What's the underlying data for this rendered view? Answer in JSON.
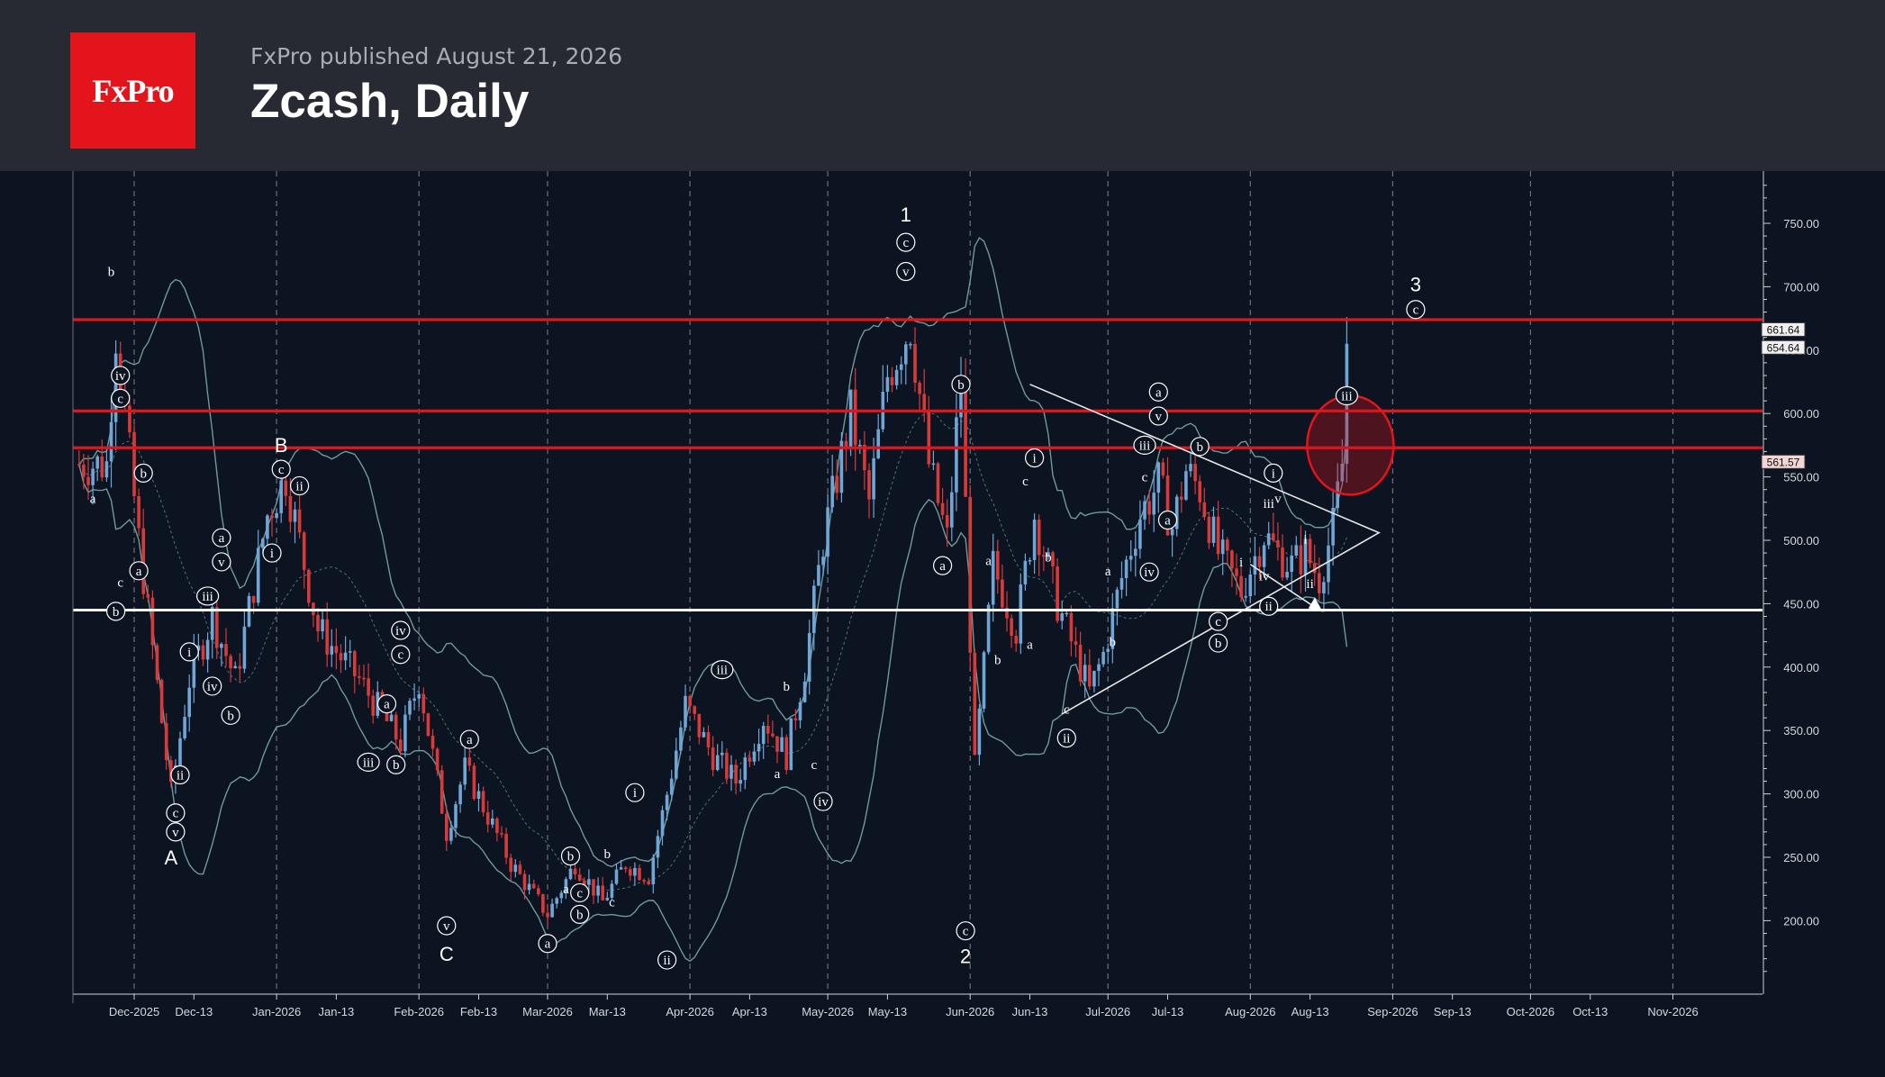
{
  "header": {
    "logo_text": "FxPro",
    "published": "FxPro published August 21, 2026",
    "title": "Zcash, Daily"
  },
  "colors": {
    "background": "#0c1421",
    "header_bg": "#272a33",
    "logo_bg": "#e3141b",
    "up_candle": "#6fa6d6",
    "down_candle": "#d83a3a",
    "resistance": "#e3141b",
    "support": "#ffffff",
    "bollinger": "#6e9a9c"
  },
  "chart_data": {
    "type": "candlestick",
    "symbol": "Zcash",
    "timeframe": "Daily",
    "ylim": [
      150,
      780
    ],
    "y_ticks": [
      "750.00",
      "700.00",
      "650.00",
      "600.00",
      "550.00",
      "500.00",
      "450.00",
      "400.00",
      "350.00",
      "300.00",
      "250.00",
      "200.00"
    ],
    "x_ticks": [
      "Dec-2025",
      "Dec-13",
      "Jan-2026",
      "Jan-13",
      "Feb-2026",
      "Feb-13",
      "Mar-2026",
      "Mar-13",
      "Apr-2026",
      "Apr-13",
      "May-2026",
      "May-13",
      "Jun-2026",
      "Jun-13",
      "Jul-2026",
      "Jul-13",
      "Aug-2026",
      "Aug-13",
      "Sep-2026",
      "Sep-13",
      "Oct-2026",
      "Oct-13",
      "Nov-2026"
    ],
    "price_labels": [
      {
        "text": "661.64",
        "value": 661.64
      },
      {
        "text": "654.64",
        "value": 654.64
      },
      {
        "text": "561.57",
        "value": 561.57
      }
    ],
    "horizontal_lines": [
      {
        "value": 674,
        "color": "#e3141b",
        "role": "resistance"
      },
      {
        "value": 602,
        "color": "#e3141b",
        "role": "resistance"
      },
      {
        "value": 573,
        "color": "#e3141b",
        "role": "resistance"
      },
      {
        "value": 445,
        "color": "#ffffff",
        "role": "support"
      }
    ],
    "close_path": [
      {
        "x": -6,
        "y": 560
      },
      {
        "x": -4,
        "y": 665
      },
      {
        "x": 1,
        "y": 500
      },
      {
        "x": 8,
        "y": 300
      },
      {
        "x": 12,
        "y": 390
      },
      {
        "x": 17,
        "y": 440
      },
      {
        "x": 22,
        "y": 390
      },
      {
        "x": 29,
        "y": 520
      },
      {
        "x": 33,
        "y": 550
      },
      {
        "x": 40,
        "y": 430
      },
      {
        "x": 49,
        "y": 390
      },
      {
        "x": 58,
        "y": 340
      },
      {
        "x": 62,
        "y": 390
      },
      {
        "x": 68,
        "y": 270
      },
      {
        "x": 72,
        "y": 320
      },
      {
        "x": 82,
        "y": 245
      },
      {
        "x": 90,
        "y": 205
      },
      {
        "x": 96,
        "y": 245
      },
      {
        "x": 102,
        "y": 215
      },
      {
        "x": 107,
        "y": 245
      },
      {
        "x": 112,
        "y": 235
      },
      {
        "x": 116,
        "y": 300
      },
      {
        "x": 120,
        "y": 370
      },
      {
        "x": 126,
        "y": 330
      },
      {
        "x": 131,
        "y": 310
      },
      {
        "x": 137,
        "y": 360
      },
      {
        "x": 142,
        "y": 330
      },
      {
        "x": 146,
        "y": 400
      },
      {
        "x": 150,
        "y": 500
      },
      {
        "x": 156,
        "y": 600
      },
      {
        "x": 160,
        "y": 530
      },
      {
        "x": 164,
        "y": 630
      },
      {
        "x": 169,
        "y": 670
      },
      {
        "x": 173,
        "y": 560
      },
      {
        "x": 177,
        "y": 500
      },
      {
        "x": 180,
        "y": 630
      },
      {
        "x": 183,
        "y": 320
      },
      {
        "x": 187,
        "y": 480
      },
      {
        "x": 192,
        "y": 430
      },
      {
        "x": 196,
        "y": 520
      },
      {
        "x": 201,
        "y": 450
      },
      {
        "x": 208,
        "y": 380
      },
      {
        "x": 211,
        "y": 410
      },
      {
        "x": 215,
        "y": 470
      },
      {
        "x": 219,
        "y": 520
      },
      {
        "x": 223,
        "y": 545
      },
      {
        "x": 226,
        "y": 510
      },
      {
        "x": 229,
        "y": 555
      },
      {
        "x": 232,
        "y": 540
      },
      {
        "x": 236,
        "y": 490
      },
      {
        "x": 241,
        "y": 460
      },
      {
        "x": 246,
        "y": 505
      },
      {
        "x": 249,
        "y": 490
      },
      {
        "x": 252,
        "y": 480
      },
      {
        "x": 255,
        "y": 490
      },
      {
        "x": 258,
        "y": 470
      },
      {
        "x": 261,
        "y": 510
      },
      {
        "x": 263,
        "y": 560
      },
      {
        "x": 264,
        "y": 650
      }
    ],
    "wave_labels": [
      {
        "text": "1",
        "x": 168,
        "y": 755,
        "style": "plain"
      },
      {
        "text": "2",
        "x": 181,
        "y": 170,
        "style": "plain"
      },
      {
        "text": "3",
        "x": 279,
        "y": 700,
        "style": "plain"
      },
      {
        "text": "A",
        "x": 8,
        "y": 248,
        "style": "plain"
      },
      {
        "text": "B",
        "x": 32,
        "y": 573,
        "style": "plain"
      },
      {
        "text": "C",
        "x": 68,
        "y": 172,
        "style": "plain"
      },
      {
        "text": "c",
        "x": 168,
        "y": 735,
        "style": "circled"
      },
      {
        "text": "v",
        "x": 168,
        "y": 712,
        "style": "circled"
      },
      {
        "text": "c",
        "x": 279,
        "y": 682,
        "style": "circled"
      },
      {
        "text": "c",
        "x": 181,
        "y": 192,
        "style": "circled"
      },
      {
        "text": "b",
        "x": 180,
        "y": 623,
        "style": "circled"
      },
      {
        "text": "a",
        "x": 176,
        "y": 480,
        "style": "circled"
      },
      {
        "text": "a",
        "x": 223,
        "y": 617,
        "style": "circled"
      },
      {
        "text": "v",
        "x": 223,
        "y": 598,
        "style": "circled"
      },
      {
        "text": "b",
        "x": 232,
        "y": 574,
        "style": "circled"
      },
      {
        "text": "iii",
        "x": 220,
        "y": 575,
        "style": "circled"
      },
      {
        "text": "a",
        "x": 225,
        "y": 516,
        "style": "circled"
      },
      {
        "text": "iv",
        "x": 221,
        "y": 475,
        "style": "circled"
      },
      {
        "text": "c",
        "x": 236,
        "y": 436,
        "style": "circled"
      },
      {
        "text": "b",
        "x": 236,
        "y": 419,
        "style": "circled"
      },
      {
        "text": "i",
        "x": 248,
        "y": 553,
        "style": "circled"
      },
      {
        "text": "ii",
        "x": 247,
        "y": 448,
        "style": "circled"
      },
      {
        "text": "iii",
        "x": 264,
        "y": 614,
        "style": "circled"
      },
      {
        "text": "ii",
        "x": 203,
        "y": 344,
        "style": "circled"
      },
      {
        "text": "i",
        "x": 196,
        "y": 565,
        "style": "circled"
      },
      {
        "text": "iv",
        "x": 150,
        "y": 294,
        "style": "circled"
      },
      {
        "text": "iii",
        "x": 128,
        "y": 398,
        "style": "circled"
      },
      {
        "text": "ii",
        "x": 116,
        "y": 169,
        "style": "circled"
      },
      {
        "text": "i",
        "x": 109,
        "y": 301,
        "style": "circled"
      },
      {
        "text": "b",
        "x": 97,
        "y": 205,
        "style": "circled"
      },
      {
        "text": "c",
        "x": 97,
        "y": 222,
        "style": "circled"
      },
      {
        "text": "b",
        "x": 95,
        "y": 251,
        "style": "circled"
      },
      {
        "text": "a",
        "x": 90,
        "y": 182,
        "style": "circled"
      },
      {
        "text": "v",
        "x": 68,
        "y": 196,
        "style": "circled"
      },
      {
        "text": "a",
        "x": 73,
        "y": 343,
        "style": "circled"
      },
      {
        "text": "c",
        "x": 58,
        "y": 410,
        "style": "circled"
      },
      {
        "text": "iv",
        "x": 58,
        "y": 429,
        "style": "circled"
      },
      {
        "text": "a",
        "x": 55,
        "y": 371,
        "style": "circled"
      },
      {
        "text": "b",
        "x": 57,
        "y": 323,
        "style": "circled"
      },
      {
        "text": "iii",
        "x": 51,
        "y": 325,
        "style": "circled"
      },
      {
        "text": "ii",
        "x": 36,
        "y": 543,
        "style": "circled"
      },
      {
        "text": "c",
        "x": 32,
        "y": 556,
        "style": "circled"
      },
      {
        "text": "i",
        "x": 30,
        "y": 490,
        "style": "circled"
      },
      {
        "text": "a",
        "x": 19,
        "y": 502,
        "style": "circled"
      },
      {
        "text": "v",
        "x": 19,
        "y": 483,
        "style": "circled"
      },
      {
        "text": "iii",
        "x": 16,
        "y": 456,
        "style": "circled"
      },
      {
        "text": "iv",
        "x": 17,
        "y": 385,
        "style": "circled"
      },
      {
        "text": "i",
        "x": 12,
        "y": 412,
        "style": "circled"
      },
      {
        "text": "ii",
        "x": 10,
        "y": 315,
        "style": "circled"
      },
      {
        "text": "b",
        "x": 21,
        "y": 362,
        "style": "circled"
      },
      {
        "text": "c",
        "x": 9,
        "y": 285,
        "style": "circled"
      },
      {
        "text": "v",
        "x": 9,
        "y": 270,
        "style": "circled"
      },
      {
        "text": "iv",
        "x": -3,
        "y": 630,
        "style": "circled"
      },
      {
        "text": "c",
        "x": -3,
        "y": 612,
        "style": "circled"
      },
      {
        "text": "b",
        "x": 2,
        "y": 553,
        "style": "circled"
      },
      {
        "text": "a",
        "x": 1,
        "y": 476,
        "style": "circled"
      },
      {
        "text": "b",
        "x": -4,
        "y": 444,
        "style": "circled"
      },
      {
        "text": "b",
        "x": -5,
        "y": 712,
        "style": "plain"
      },
      {
        "text": "c",
        "x": -3,
        "y": 467,
        "style": "plain"
      },
      {
        "text": "a",
        "x": -9,
        "y": 533,
        "style": "plain"
      },
      {
        "text": "a",
        "x": 94,
        "y": 225,
        "style": "plain"
      },
      {
        "text": "c",
        "x": 104,
        "y": 215,
        "style": "plain"
      },
      {
        "text": "b",
        "x": 103,
        "y": 253,
        "style": "plain"
      },
      {
        "text": "a",
        "x": 140,
        "y": 316,
        "style": "plain"
      },
      {
        "text": "b",
        "x": 142,
        "y": 385,
        "style": "plain"
      },
      {
        "text": "c",
        "x": 148,
        "y": 323,
        "style": "plain"
      },
      {
        "text": "a",
        "x": 186,
        "y": 484,
        "style": "plain"
      },
      {
        "text": "b",
        "x": 188,
        "y": 406,
        "style": "plain"
      },
      {
        "text": "c",
        "x": 194,
        "y": 547,
        "style": "plain"
      },
      {
        "text": "a",
        "x": 195,
        "y": 418,
        "style": "plain"
      },
      {
        "text": "b",
        "x": 199,
        "y": 487,
        "style": "plain"
      },
      {
        "text": "c",
        "x": 203,
        "y": 367,
        "style": "plain"
      },
      {
        "text": "a",
        "x": 212,
        "y": 476,
        "style": "plain"
      },
      {
        "text": "b",
        "x": 213,
        "y": 420,
        "style": "plain"
      },
      {
        "text": "c",
        "x": 220,
        "y": 550,
        "style": "plain"
      },
      {
        "text": "i",
        "x": 241,
        "y": 483,
        "style": "plain"
      },
      {
        "text": "iii",
        "x": 247,
        "y": 529,
        "style": "plain"
      },
      {
        "text": "iv",
        "x": 246,
        "y": 472,
        "style": "plain"
      },
      {
        "text": "v",
        "x": 249,
        "y": 533,
        "style": "plain"
      },
      {
        "text": "i",
        "x": 255,
        "y": 501,
        "style": "plain"
      },
      {
        "text": "ii",
        "x": 256,
        "y": 466,
        "style": "plain"
      }
    ],
    "triangle": [
      {
        "x": 202,
        "y": 363
      },
      {
        "x": 271,
        "y": 506
      },
      {
        "x": 195,
        "y": 623
      }
    ],
    "triangle_arrow": [
      {
        "x": 243,
        "y": 481
      },
      {
        "x": 258,
        "y": 445
      }
    ],
    "circle_highlight": {
      "x": 264,
      "y": 575
    },
    "xlabel": "",
    "ylabel": ""
  }
}
